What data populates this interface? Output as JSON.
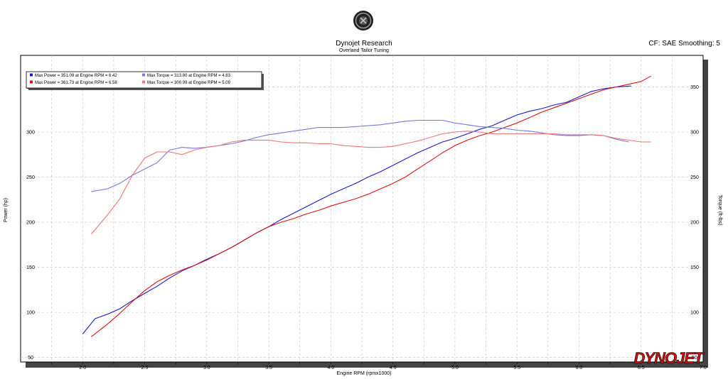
{
  "header": {
    "title": "Dynojet Research",
    "subtitle": "Overland Tailor Tuning",
    "cf_label": "CF: SAE Smoothing: 5"
  },
  "brand": {
    "logo_text": "DYNOJET",
    "logo_color": "#cc1111"
  },
  "colors": {
    "power1": "#1a1acc",
    "power2": "#dd1111",
    "torque1": "#7777dd",
    "torque2": "#ee7777",
    "grid": "#c0c0c0"
  },
  "legend": [
    {
      "text": "Max Power = 351.09 at Engine RPM = 6.42",
      "color": "#1a1acc"
    },
    {
      "text": "Max Torque = 313.80 at Engine RPM = 4.83",
      "color": "#7777dd"
    },
    {
      "text": "Max Power = 361.73 at Engine RPM = 6.58",
      "color": "#dd1111"
    },
    {
      "text": "Max Torque = 300.99 at Engine RPM = 5.09",
      "color": "#ee7777"
    }
  ],
  "chart_data": {
    "type": "line",
    "xlabel": "Engine RPM (rpmx1000)",
    "ylabel": "Power (hp)",
    "y2label": "Torque (ft-lbs)",
    "xlim": [
      1.5,
      7.0
    ],
    "ylim": [
      45,
      385
    ],
    "x_ticks": [
      "2.0",
      "2.5",
      "3.0",
      "3.5",
      "4.0",
      "4.5",
      "5.0",
      "5.5",
      "6.0",
      "6.5",
      "7.0"
    ],
    "y_ticks": [
      "50",
      "100",
      "150",
      "200",
      "250",
      "300",
      "350"
    ],
    "y2_ticks": [
      "50",
      "100",
      "150",
      "200",
      "250",
      "300",
      "350"
    ],
    "grid": true,
    "legend_position": "top-left",
    "series": [
      {
        "name": "Max Power = 351.09 at Engine RPM = 6.42",
        "color": "#1a1acc",
        "x": [
          2.0,
          2.1,
          2.2,
          2.3,
          2.4,
          2.5,
          2.6,
          2.7,
          2.8,
          2.9,
          3.0,
          3.1,
          3.2,
          3.3,
          3.4,
          3.5,
          3.6,
          3.7,
          3.8,
          3.9,
          4.0,
          4.1,
          4.2,
          4.3,
          4.4,
          4.5,
          4.6,
          4.7,
          4.8,
          4.9,
          5.0,
          5.1,
          5.2,
          5.3,
          5.4,
          5.5,
          5.6,
          5.7,
          5.8,
          5.9,
          6.0,
          6.1,
          6.2,
          6.3,
          6.42
        ],
        "y": [
          76,
          93,
          98,
          104,
          113,
          121,
          129,
          138,
          146,
          152,
          159,
          165,
          172,
          180,
          188,
          195,
          203,
          210,
          217,
          224,
          231,
          237,
          243,
          250,
          256,
          263,
          270,
          277,
          283,
          289,
          293,
          298,
          303,
          307,
          313,
          319,
          323,
          326,
          330,
          333,
          339,
          345,
          348,
          350,
          351
        ]
      },
      {
        "name": "Max Power = 361.73 at Engine RPM = 6.58",
        "color": "#dd1111",
        "x": [
          2.07,
          2.2,
          2.3,
          2.4,
          2.5,
          2.6,
          2.7,
          2.8,
          2.9,
          3.0,
          3.1,
          3.2,
          3.3,
          3.4,
          3.5,
          3.6,
          3.7,
          3.8,
          3.9,
          4.0,
          4.1,
          4.2,
          4.3,
          4.4,
          4.5,
          4.6,
          4.7,
          4.8,
          4.9,
          5.0,
          5.1,
          5.2,
          5.3,
          5.4,
          5.5,
          5.6,
          5.7,
          5.8,
          5.9,
          6.0,
          6.1,
          6.2,
          6.3,
          6.4,
          6.5,
          6.58
        ],
        "y": [
          73,
          87,
          99,
          112,
          124,
          134,
          141,
          147,
          152,
          158,
          165,
          172,
          180,
          188,
          195,
          200,
          204,
          209,
          213,
          218,
          222,
          226,
          231,
          237,
          243,
          250,
          259,
          268,
          277,
          285,
          291,
          296,
          300,
          305,
          310,
          316,
          322,
          327,
          332,
          337,
          342,
          347,
          350,
          353,
          356,
          362
        ]
      },
      {
        "name": "Max Torque = 313.80 at Engine RPM = 4.83",
        "color": "#7777dd",
        "x": [
          2.07,
          2.2,
          2.3,
          2.4,
          2.5,
          2.6,
          2.7,
          2.8,
          2.9,
          3.0,
          3.1,
          3.2,
          3.3,
          3.4,
          3.5,
          3.6,
          3.7,
          3.8,
          3.9,
          4.0,
          4.1,
          4.2,
          4.3,
          4.4,
          4.5,
          4.6,
          4.7,
          4.8,
          4.9,
          5.0,
          5.1,
          5.2,
          5.3,
          5.4,
          5.5,
          5.6,
          5.7,
          5.8,
          5.9,
          6.0,
          6.1,
          6.2,
          6.3,
          6.4
        ],
        "y": [
          234,
          237,
          243,
          252,
          259,
          266,
          280,
          283,
          282,
          283,
          285,
          287,
          290,
          294,
          297,
          299,
          301,
          303,
          305,
          305,
          305,
          306,
          307,
          308,
          310,
          312,
          313,
          313,
          313,
          310,
          308,
          306,
          305,
          304,
          302,
          301,
          299,
          297,
          296,
          296,
          297,
          296,
          292,
          289
        ]
      },
      {
        "name": "Max Torque = 300.99 at Engine RPM = 5.09",
        "color": "#ee7777",
        "x": [
          2.07,
          2.2,
          2.3,
          2.4,
          2.5,
          2.6,
          2.7,
          2.8,
          2.9,
          3.0,
          3.1,
          3.2,
          3.3,
          3.4,
          3.5,
          3.6,
          3.7,
          3.8,
          3.9,
          4.0,
          4.1,
          4.2,
          4.3,
          4.4,
          4.5,
          4.6,
          4.7,
          4.8,
          4.9,
          5.0,
          5.1,
          5.2,
          5.3,
          5.4,
          5.5,
          5.6,
          5.7,
          5.8,
          5.9,
          6.0,
          6.1,
          6.2,
          6.3,
          6.4,
          6.5,
          6.58
        ],
        "y": [
          187,
          208,
          226,
          252,
          271,
          278,
          278,
          275,
          280,
          283,
          285,
          289,
          291,
          291,
          291,
          289,
          288,
          288,
          287,
          287,
          285,
          284,
          283,
          283,
          284,
          287,
          290,
          294,
          298,
          300,
          301,
          300,
          298,
          298,
          298,
          298,
          298,
          298,
          297,
          297,
          297,
          296,
          293,
          291,
          289,
          289
        ]
      }
    ]
  }
}
